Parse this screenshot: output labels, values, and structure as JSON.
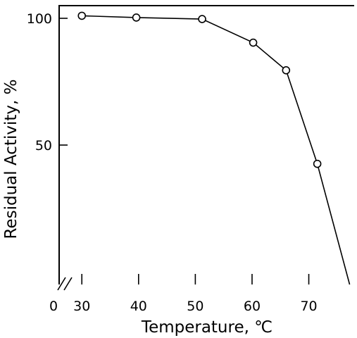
{
  "chart_data": {
    "type": "line",
    "title": "",
    "xlabel": "Temperature, ℃",
    "ylabel": "Residual Activity, %",
    "x_break_label": "0",
    "x_ticks": [
      30,
      40,
      50,
      60,
      70
    ],
    "y_ticks": [
      50,
      100
    ],
    "xlim": [
      26,
      78
    ],
    "ylim": [
      -5,
      105
    ],
    "grid": false,
    "legend": "none",
    "series": [
      {
        "x": [
          30,
          39.6,
          51.2,
          60.2,
          66,
          71.5,
          77.2
        ],
        "y": [
          101,
          100.3,
          99.7,
          90.4,
          79.5,
          42.6,
          -5
        ],
        "markers": [
          true,
          true,
          true,
          true,
          true,
          true,
          false
        ]
      }
    ],
    "colors": {
      "line": "#000000",
      "marker_fill": "#ffffff",
      "background": "#ffffff"
    }
  }
}
